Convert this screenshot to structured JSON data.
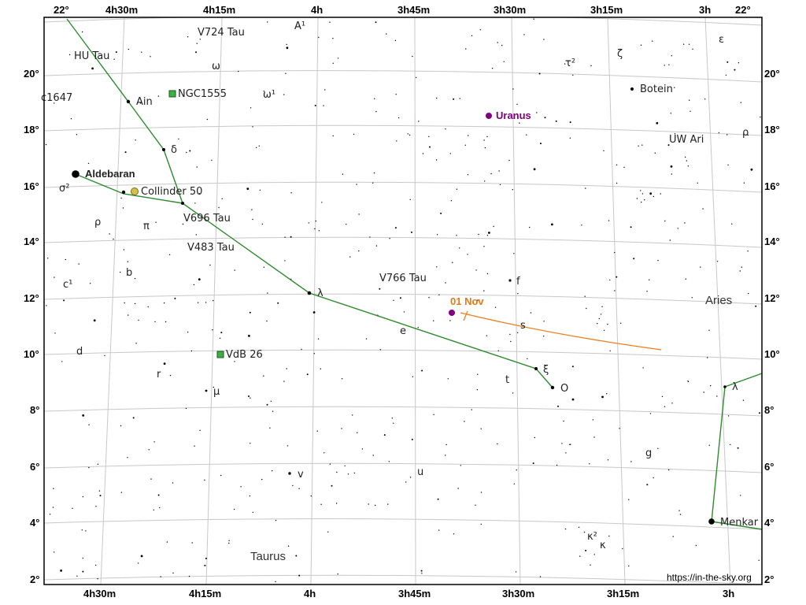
{
  "frame": {
    "top_ra_labels": [
      "22°",
      "4h30m",
      "4h15m",
      "4h",
      "3h45m",
      "3h30m",
      "3h15m",
      "3h",
      "22°"
    ],
    "bottom_ra_labels": [
      "4h30m",
      "4h15m",
      "4h",
      "3h45m",
      "3h30m",
      "3h15m",
      "3h"
    ],
    "dec_labels": [
      "20°",
      "18°",
      "16°",
      "14°",
      "12°",
      "10°",
      "8°",
      "6°",
      "4°",
      "2°"
    ]
  },
  "constellations": [
    "Taurus",
    "Aries"
  ],
  "bright_stars": {
    "aldebaran": "Aldebaran",
    "menkar": "Menkar",
    "ain": "Ain",
    "botein": "Botein"
  },
  "star_labels": {
    "hu_tau": "HU Tau",
    "v724_tau": "V724 Tau",
    "a1": "A¹",
    "omega": "ω",
    "omega1": "ω¹",
    "c1647": "c1647",
    "delta": "δ",
    "sigma2": "σ²",
    "rho_tau": "ρ",
    "pi": "π",
    "v696_tau": "V696 Tau",
    "v483_tau": "V483 Tau",
    "b": "b",
    "c1": "c¹",
    "lambda_tau": "λ",
    "v766_tau": "V766 Tau",
    "f": "f",
    "s": "s",
    "e": "e",
    "d": "d",
    "r": "r",
    "mu": "μ",
    "xi": "ξ",
    "o": "O",
    "t": "t",
    "v": "v",
    "u": "u",
    "g": "g",
    "kappa2": "κ²",
    "kappa": "κ",
    "tau2": "τ²",
    "zeta": "ζ",
    "epsilon": "ε",
    "rho_ari": "ρ",
    "uw_ari": "UW Ari",
    "lambda_cet": "λ"
  },
  "deep_sky": {
    "ngc1555": "NGC1555",
    "collinder50": "Collinder 50",
    "vdb26": "VdB 26"
  },
  "planet": {
    "name": "Uranus",
    "color": "#800080"
  },
  "path": {
    "date_label": "01 Nov",
    "color": "#f07d1a"
  },
  "credit": "https://in-the-sky.org",
  "colors": {
    "constellation_lines": "#2e8b2e",
    "deep_sky_fill": "#3cb043",
    "cluster_fill": "#d4c04a"
  }
}
